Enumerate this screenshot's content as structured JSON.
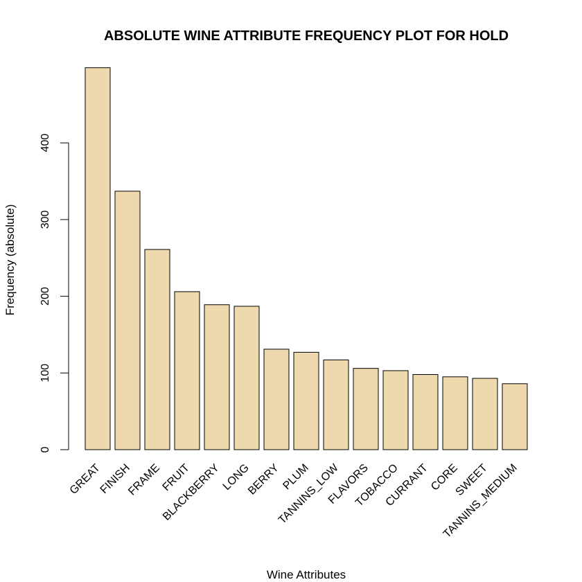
{
  "chart_data": {
    "type": "bar",
    "title": "ABSOLUTE WINE ATTRIBUTE FREQUENCY PLOT FOR HOLD",
    "xlabel": "Wine Attributes",
    "ylabel": "Frequency (absolute)",
    "categories": [
      "GREAT",
      "FINISH",
      "FRAME",
      "FRUIT",
      "BLACKBERRY",
      "LONG",
      "BERRY",
      "PLUM",
      "TANNINS_LOW",
      "FLAVORS",
      "TOBACCO",
      "CURRANT",
      "CORE",
      "SWEET",
      "TANNINS_MEDIUM"
    ],
    "values": [
      498,
      337,
      261,
      206,
      189,
      187,
      131,
      127,
      117,
      106,
      103,
      98,
      95,
      93,
      86
    ],
    "yticks": [
      0,
      100,
      200,
      300,
      400
    ],
    "ylim": [
      0,
      498
    ],
    "bar_color": "#eed8ad",
    "bar_stroke": "#000000",
    "grid": false,
    "legend": "none"
  }
}
